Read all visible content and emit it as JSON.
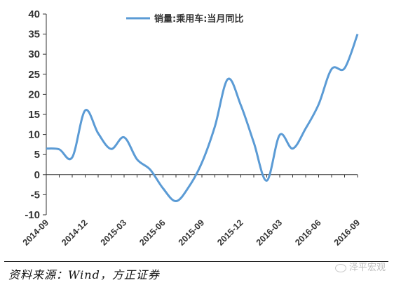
{
  "chart_data": {
    "type": "line",
    "title": "",
    "xlabel": "",
    "ylabel": "",
    "ylim": [
      -10,
      40
    ],
    "yticks": [
      40,
      35,
      30,
      25,
      20,
      15,
      10,
      5,
      0,
      -5,
      -10
    ],
    "x_tick_labels": [
      "2014-09",
      "2014-12",
      "2015-03",
      "2015-06",
      "2015-09",
      "2015-12",
      "2016-03",
      "2016-06",
      "2016-09"
    ],
    "series": [
      {
        "name": "销量:乘用车:当月同比",
        "color": "#5b9bd5",
        "points": [
          {
            "x": "2014-09",
            "y": 6.5
          },
          {
            "x": "2014-10",
            "y": 6.3
          },
          {
            "x": "2014-11",
            "y": 4.3
          },
          {
            "x": "2014-12",
            "y": 16.0
          },
          {
            "x": "2015-01",
            "y": 10.3
          },
          {
            "x": "2015-02",
            "y": 6.4
          },
          {
            "x": "2015-03",
            "y": 9.3
          },
          {
            "x": "2015-04",
            "y": 3.8
          },
          {
            "x": "2015-05",
            "y": 1.3
          },
          {
            "x": "2015-06",
            "y": -3.4
          },
          {
            "x": "2015-07",
            "y": -6.6
          },
          {
            "x": "2015-08",
            "y": -3.0
          },
          {
            "x": "2015-09",
            "y": 3.0
          },
          {
            "x": "2015-10",
            "y": 12.0
          },
          {
            "x": "2015-11",
            "y": 23.8
          },
          {
            "x": "2015-12",
            "y": 17.3
          },
          {
            "x": "2016-01",
            "y": 8.0
          },
          {
            "x": "2016-02",
            "y": -1.5
          },
          {
            "x": "2016-03",
            "y": 9.9
          },
          {
            "x": "2016-04",
            "y": 6.5
          },
          {
            "x": "2016-05",
            "y": 11.5
          },
          {
            "x": "2016-06",
            "y": 17.5
          },
          {
            "x": "2016-07",
            "y": 26.3
          },
          {
            "x": "2016-08",
            "y": 26.5
          },
          {
            "x": "2016-09",
            "y": 35.0
          }
        ]
      }
    ],
    "legend_position": "top-center",
    "grid": false
  },
  "source": "资料来源：Wind，方正证券",
  "watermark": "泽平宏观"
}
